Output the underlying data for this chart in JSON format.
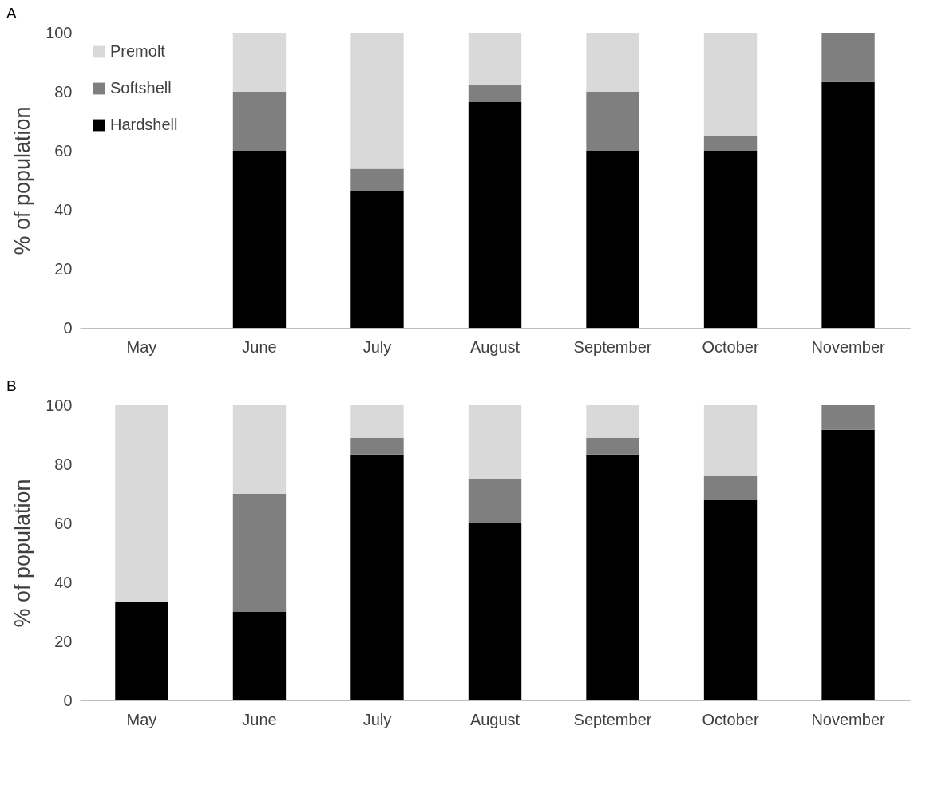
{
  "chart_data": [
    {
      "type": "bar",
      "title": "A",
      "ylabel": "% of population",
      "categories": [
        "May",
        "June",
        "July",
        "August",
        "September",
        "October",
        "November"
      ],
      "stacked": true,
      "ylim": [
        0,
        100
      ],
      "yticks": [
        0,
        20,
        40,
        60,
        80,
        100
      ],
      "grid": false,
      "legend": "top left",
      "series": [
        {
          "name": "Hardshell",
          "color": "#000000",
          "values": [
            null,
            60,
            46.2,
            76.5,
            60,
            60,
            83.3
          ]
        },
        {
          "name": "Softshell",
          "color": "#7f7f7f",
          "values": [
            null,
            20,
            7.7,
            5.9,
            20,
            5,
            16.7
          ]
        },
        {
          "name": "Premolt",
          "color": "#d9d9d9",
          "values": [
            null,
            20,
            46.1,
            17.6,
            20,
            35,
            0
          ]
        }
      ]
    },
    {
      "type": "bar",
      "title": "B",
      "ylabel": "% of population",
      "categories": [
        "May",
        "June",
        "July",
        "August",
        "September",
        "October",
        "November"
      ],
      "stacked": true,
      "ylim": [
        0,
        100
      ],
      "yticks": [
        0,
        20,
        40,
        60,
        80,
        100
      ],
      "grid": false,
      "legend": false,
      "series": [
        {
          "color": "#000000",
          "values": [
            33.3,
            30,
            83.3,
            60,
            83.3,
            68,
            91.7
          ]
        },
        {
          "color": "#7f7f7f",
          "values": [
            0,
            40,
            5.6,
            15,
            5.6,
            8,
            8.3
          ]
        },
        {
          "color": "#d9d9d9",
          "values": [
            66.7,
            30,
            11.1,
            25,
            11.1,
            24,
            0
          ]
        }
      ]
    }
  ]
}
